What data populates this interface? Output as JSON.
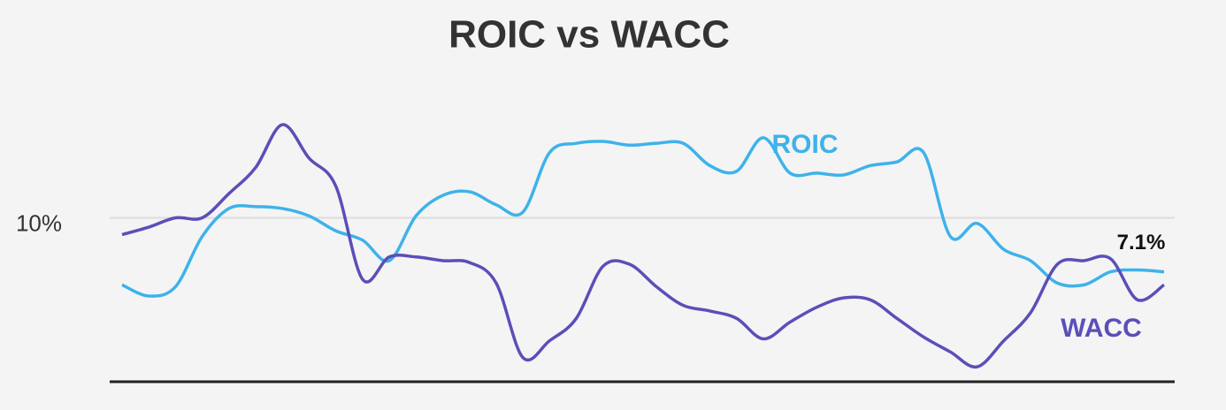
{
  "chart_data": {
    "type": "line",
    "title": "ROIC vs WACC",
    "categories": [
      null,
      null,
      null,
      null,
      null,
      null,
      null,
      null,
      null,
      null,
      null,
      null,
      null,
      null,
      null,
      null,
      null,
      null,
      null,
      null,
      null,
      null,
      null,
      null,
      null,
      null,
      null,
      null,
      null,
      null,
      null,
      null,
      null,
      null,
      null,
      null,
      null,
      null,
      null,
      null
    ],
    "series": [
      {
        "name": "ROIC",
        "color": "#3eb2ea",
        "values": [
          6.4,
          5.8,
          6.3,
          9.0,
          10.5,
          10.6,
          10.5,
          10.1,
          9.3,
          8.8,
          7.7,
          10.1,
          11.2,
          11.4,
          10.7,
          10.3,
          13.5,
          14.0,
          14.1,
          13.9,
          14.0,
          14.0,
          12.8,
          12.5,
          14.3,
          12.4,
          12.4,
          12.3,
          12.8,
          13.0,
          13.5,
          9.0,
          9.7,
          8.3,
          7.7,
          6.5,
          6.4,
          7.1,
          7.2,
          7.1
        ],
        "value_labels": [
          null,
          null,
          null,
          null,
          null,
          null,
          null,
          null,
          null,
          null,
          null,
          null,
          null,
          null,
          null,
          null,
          null,
          null,
          null,
          null,
          null,
          null,
          null,
          null,
          null,
          null,
          null,
          null,
          null,
          null,
          null,
          null,
          null,
          null,
          null,
          null,
          null,
          null,
          null,
          "7.1%"
        ]
      },
      {
        "name": "WACC",
        "color": "#5a4fb8",
        "values": [
          9.1,
          9.5,
          10.0,
          10.0,
          11.3,
          12.7,
          15.0,
          13.2,
          11.7,
          6.7,
          7.9,
          7.9,
          7.7,
          7.6,
          6.5,
          2.5,
          3.4,
          4.6,
          7.4,
          7.5,
          6.3,
          5.3,
          5.0,
          4.6,
          3.5,
          4.4,
          5.2,
          5.7,
          5.6,
          4.6,
          3.6,
          2.8,
          2.0,
          3.4,
          4.9,
          7.5,
          7.7,
          7.8,
          5.6,
          6.4
        ]
      }
    ],
    "ylim": [
      1.2,
      16.0
    ],
    "yticks": [
      {
        "value": 10,
        "label": "10%"
      }
    ],
    "grid": true
  }
}
